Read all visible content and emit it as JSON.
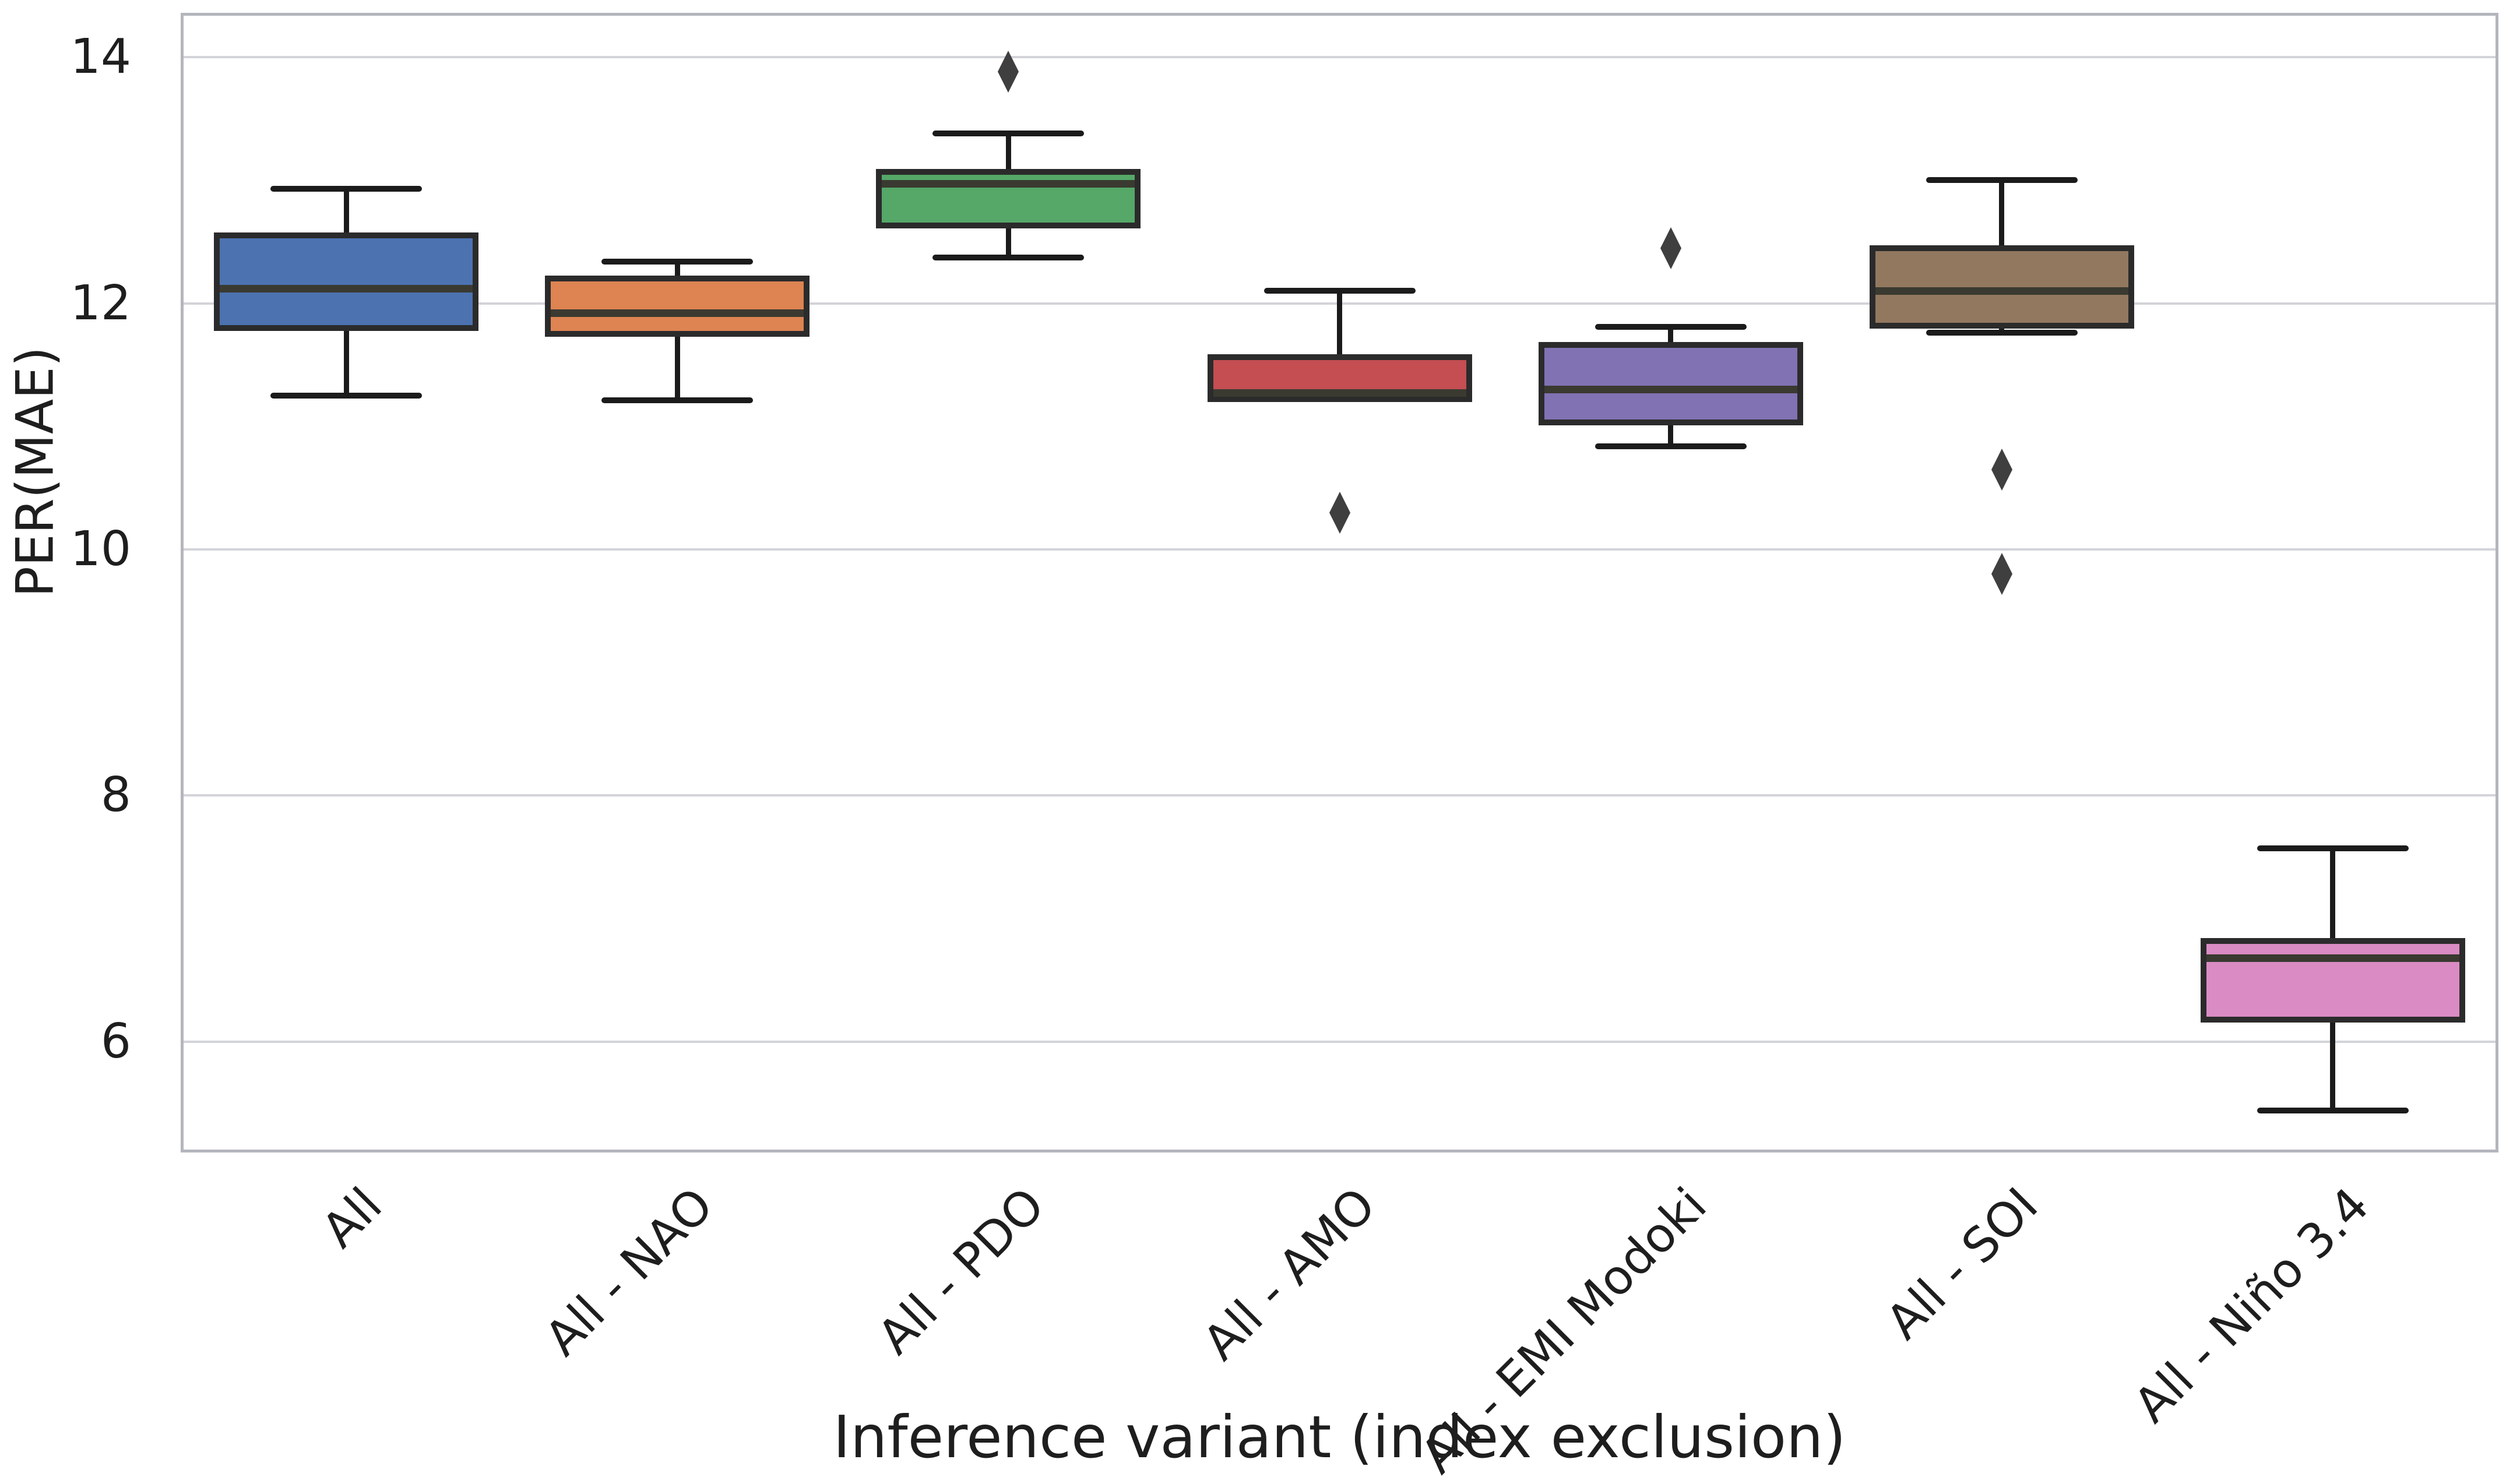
{
  "chart_data": {
    "type": "box",
    "title": "",
    "xlabel": "Inference variant (index exclusion)",
    "ylabel": "PER(MAE)",
    "ylim": [
      5.1,
      14.36
    ],
    "yticks": [
      14,
      12,
      10,
      8,
      6
    ],
    "ytick_labels": [
      "14",
      "12",
      "10",
      "8",
      "6"
    ],
    "grid": true,
    "legend": "none",
    "categories": [
      "All",
      "All - NAO",
      "All - PDO",
      "All - AMO",
      "All - EMI Modoki",
      "All - SOI",
      "All - Niño 3.4"
    ],
    "series": [
      {
        "label": "All",
        "color": "#4C72B0",
        "whislo": 11.25,
        "q1": 11.8,
        "med": 12.12,
        "q3": 12.55,
        "whishi": 12.93,
        "outliers": []
      },
      {
        "label": "All - NAO",
        "color": "#DD8452",
        "whislo": 11.21,
        "q1": 11.75,
        "med": 11.92,
        "q3": 12.2,
        "whishi": 12.34,
        "outliers": []
      },
      {
        "label": "All - PDO",
        "color": "#55A868",
        "whislo": 12.37,
        "q1": 12.63,
        "med": 12.97,
        "q3": 13.07,
        "whishi": 13.38,
        "outliers": [
          13.88
        ]
      },
      {
        "label": "All - AMO",
        "color": "#C44E52",
        "whislo": 11.22,
        "q1": 11.22,
        "med": 11.27,
        "q3": 11.56,
        "whishi": 12.1,
        "outliers": [
          10.3
        ]
      },
      {
        "label": "All - EMI Modoki",
        "color": "#8172B3",
        "whislo": 10.84,
        "q1": 11.03,
        "med": 11.3,
        "q3": 11.66,
        "whishi": 11.81,
        "outliers": [
          12.45
        ]
      },
      {
        "label": "All - SOI",
        "color": "#937860",
        "whislo": 11.76,
        "q1": 11.82,
        "med": 12.1,
        "q3": 12.45,
        "whishi": 13.0,
        "outliers": [
          10.65,
          9.8
        ]
      },
      {
        "label": "All - Niño 3.4",
        "color": "#DA8BC3",
        "whislo": 5.44,
        "q1": 6.18,
        "med": 6.68,
        "q3": 6.82,
        "whishi": 7.57,
        "outliers": []
      }
    ],
    "colors": {
      "background": "#ffffff",
      "spine": "#b4b6bd",
      "gridline": "#d3d4d9",
      "box_edge": "#2b2b2b",
      "median": "#3a3a31",
      "whisker": "#1b1b1b",
      "outlier_marker": "#3f3f3f",
      "text": "#1e1e1e"
    }
  }
}
